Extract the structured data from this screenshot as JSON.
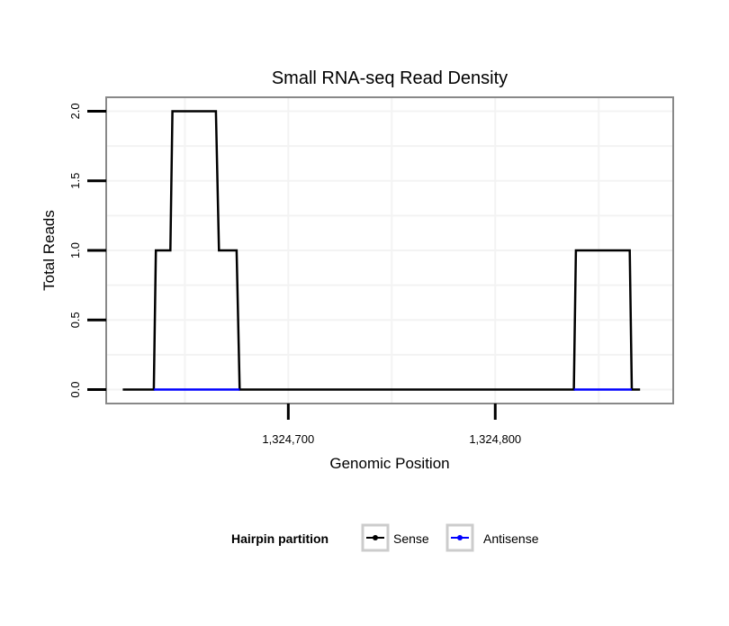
{
  "chart_data": {
    "type": "line",
    "title": "Small RNA-seq Read Density",
    "xlabel": "Genomic Position",
    "ylabel": "Total Reads",
    "xlim": [
      1324612,
      1324886
    ],
    "ylim": [
      -0.1,
      2.1
    ],
    "x_ticks": [
      1324700,
      1324800
    ],
    "x_tick_labels": [
      "1,324,700",
      "1,324,800"
    ],
    "y_ticks": [
      0,
      0.5,
      1,
      1.5,
      2
    ],
    "y_tick_labels": [
      "0.0",
      "0.5",
      "1.0",
      "1.5",
      "2.0"
    ],
    "grid": true,
    "legend": {
      "title": "Hairpin partition",
      "placement": "bottom"
    },
    "series": [
      {
        "name": "Sense",
        "color": "#000000",
        "x": [
          1324620,
          1324635,
          1324636,
          1324643,
          1324644,
          1324665,
          1324666.5,
          1324675,
          1324676.5,
          1324838,
          1324839,
          1324865,
          1324866,
          1324870
        ],
        "y": [
          0,
          0,
          1,
          1,
          2,
          2,
          1,
          1,
          0,
          0,
          1,
          1,
          0,
          0
        ]
      },
      {
        "name": "Antisense",
        "color": "#0000ff",
        "x": [
          1324635,
          1324676.5,
          null,
          1324838,
          1324866
        ],
        "y": [
          0,
          0,
          null,
          0,
          0
        ]
      }
    ]
  }
}
